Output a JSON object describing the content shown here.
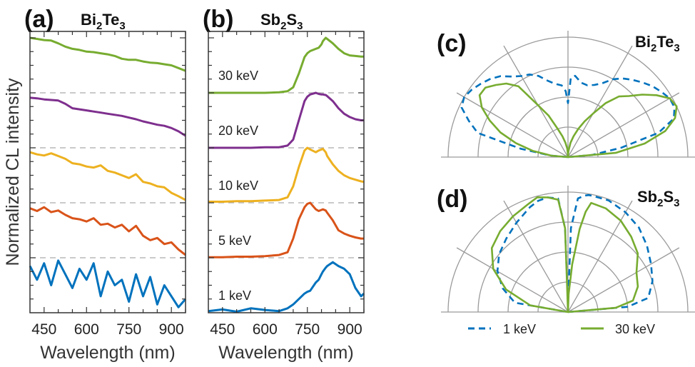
{
  "colors": {
    "30 keV": "#77ac30",
    "20 keV": "#7e2f8e",
    "10 keV": "#edb120",
    "5 keV": "#d95319",
    "1 keV": "#0072bd",
    "grid": "#9a9a9a",
    "frame": "#333333"
  },
  "chart_data": [
    {
      "panel": "(a)",
      "type": "line",
      "title_parts": [
        "Bi",
        "2",
        "Te",
        "3"
      ],
      "xlabel": "Wavelength (nm)",
      "ylabel": "Normalized CL intensity",
      "xlim": [
        400,
        950
      ],
      "xticks": [
        450,
        600,
        750,
        900
      ],
      "offset_step": 1,
      "x": [
        400,
        425,
        450,
        475,
        500,
        525,
        550,
        575,
        600,
        625,
        650,
        675,
        700,
        725,
        750,
        775,
        800,
        825,
        850,
        875,
        900,
        925,
        950
      ],
      "series": [
        {
          "key": "1 keV",
          "offset": 0,
          "values": [
            0.85,
            0.6,
            0.9,
            0.5,
            0.95,
            0.7,
            0.45,
            0.8,
            0.6,
            0.9,
            0.3,
            0.75,
            0.5,
            0.6,
            0.2,
            0.7,
            0.3,
            0.65,
            0.15,
            0.5,
            0.3,
            0.1,
            0.25
          ]
        },
        {
          "key": "5 keV",
          "offset": 1,
          "values": [
            0.9,
            0.85,
            0.92,
            0.83,
            0.86,
            0.78,
            0.72,
            0.7,
            0.66,
            0.72,
            0.6,
            0.62,
            0.55,
            0.6,
            0.48,
            0.58,
            0.4,
            0.32,
            0.36,
            0.25,
            0.28,
            0.15,
            0.05
          ]
        },
        {
          "key": "10 keV",
          "offset": 2,
          "values": [
            0.92,
            0.88,
            0.86,
            0.9,
            0.85,
            0.8,
            0.72,
            0.7,
            0.66,
            0.64,
            0.68,
            0.58,
            0.55,
            0.5,
            0.45,
            0.52,
            0.38,
            0.35,
            0.3,
            0.28,
            0.18,
            0.12,
            0.05
          ]
        },
        {
          "key": "20 keV",
          "offset": 3,
          "values": [
            0.91,
            0.9,
            0.88,
            0.87,
            0.86,
            0.8,
            0.72,
            0.7,
            0.68,
            0.66,
            0.64,
            0.62,
            0.6,
            0.58,
            0.55,
            0.52,
            0.48,
            0.45,
            0.42,
            0.4,
            0.36,
            0.3,
            0.22
          ]
        },
        {
          "key": "30 keV",
          "offset": 4,
          "values": [
            1.0,
            0.98,
            0.96,
            0.95,
            0.9,
            0.84,
            0.8,
            0.78,
            0.75,
            0.74,
            0.72,
            0.7,
            0.67,
            0.62,
            0.6,
            0.6,
            0.57,
            0.55,
            0.54,
            0.52,
            0.5,
            0.45,
            0.4
          ]
        }
      ]
    },
    {
      "panel": "(b)",
      "type": "line",
      "title_parts": [
        "Sb",
        "2",
        "S",
        "3"
      ],
      "xlabel": "Wavelength (nm)",
      "xlim": [
        400,
        950
      ],
      "xticks": [
        450,
        600,
        750,
        900
      ],
      "offset_step": 1,
      "x": [
        400,
        450,
        500,
        550,
        600,
        650,
        680,
        700,
        720,
        740,
        750,
        760,
        780,
        790,
        800,
        805,
        815,
        820,
        840,
        860,
        880,
        900,
        920,
        940,
        950
      ],
      "series": [
        {
          "key": "1 keV",
          "offset": 0,
          "label": "1 keV",
          "values": [
            0.03,
            0.06,
            0.02,
            0.08,
            0.05,
            0.03,
            0.08,
            0.15,
            0.25,
            0.35,
            0.38,
            0.4,
            0.55,
            0.6,
            0.7,
            0.75,
            0.82,
            0.85,
            0.92,
            0.85,
            0.8,
            0.7,
            0.45,
            0.3,
            0.35
          ]
        },
        {
          "key": "5 keV",
          "offset": 1,
          "label": "5 keV",
          "values": [
            0.01,
            0.01,
            0.02,
            0.02,
            0.03,
            0.05,
            0.1,
            0.35,
            0.7,
            0.92,
            0.98,
            1.0,
            0.88,
            0.85,
            0.87,
            0.88,
            0.86,
            0.82,
            0.68,
            0.5,
            0.44,
            0.4,
            0.37,
            0.35,
            0.35
          ]
        },
        {
          "key": "10 keV",
          "offset": 2,
          "label": "10 keV",
          "values": [
            0.02,
            0.02,
            0.03,
            0.03,
            0.04,
            0.05,
            0.1,
            0.3,
            0.65,
            0.95,
            1.0,
            0.97,
            0.92,
            0.95,
            0.97,
            0.98,
            0.92,
            0.85,
            0.7,
            0.58,
            0.5,
            0.45,
            0.42,
            0.39,
            0.38
          ]
        },
        {
          "key": "20 keV",
          "offset": 3,
          "label": "20 keV",
          "values": [
            0.0,
            0.0,
            0.0,
            0.0,
            0.01,
            0.01,
            0.04,
            0.15,
            0.5,
            0.85,
            0.93,
            0.97,
            1.0,
            0.98,
            0.97,
            0.97,
            0.96,
            0.94,
            0.85,
            0.72,
            0.62,
            0.56,
            0.52,
            0.5,
            0.5
          ]
        },
        {
          "key": "30 keV",
          "offset": 4,
          "label": "30 keV",
          "values": [
            0.0,
            0.0,
            0.0,
            0.0,
            0.0,
            0.01,
            0.03,
            0.1,
            0.35,
            0.65,
            0.72,
            0.76,
            0.8,
            0.82,
            0.88,
            0.94,
            1.0,
            0.98,
            0.9,
            0.8,
            0.72,
            0.68,
            0.67,
            0.66,
            0.66
          ]
        }
      ]
    },
    {
      "panel": "(c)",
      "type": "polar",
      "title_parts": [
        "Bi",
        "2",
        "Te",
        "3"
      ],
      "angle_deg": [
        0,
        5,
        10,
        15,
        20,
        25,
        30,
        35,
        40,
        45,
        50,
        55,
        60,
        65,
        70,
        75,
        80,
        85,
        88,
        90,
        92,
        95,
        100,
        105,
        110,
        115,
        120,
        125,
        130,
        135,
        140,
        145,
        150,
        155,
        160,
        165,
        170,
        175,
        180
      ],
      "series": [
        {
          "key": "1 keV",
          "style": "dashed",
          "r": [
            0,
            0.2,
            0.45,
            0.78,
            0.94,
            0.98,
            0.98,
            0.95,
            0.92,
            0.88,
            0.84,
            0.8,
            0.75,
            0.68,
            0.64,
            0.62,
            0.63,
            0.68,
            0.66,
            0.45,
            0.55,
            0.6,
            0.62,
            0.66,
            0.72,
            0.76,
            0.78,
            0.82,
            0.88,
            0.92,
            0.95,
            0.98,
            1.0,
            0.98,
            0.88,
            0.78,
            0.4,
            0.15,
            0
          ]
        },
        {
          "key": "30 keV",
          "style": "solid",
          "r": [
            0,
            0.4,
            0.65,
            0.84,
            0.95,
            1.0,
            0.98,
            0.9,
            0.81,
            0.72,
            0.66,
            0.55,
            0.42,
            0.33,
            0.25,
            0.18,
            0.12,
            0.05,
            0.02,
            0,
            0.03,
            0.07,
            0.12,
            0.18,
            0.25,
            0.38,
            0.5,
            0.72,
            0.8,
            0.85,
            0.9,
            0.9,
            0.83,
            0.72,
            0.6,
            0.45,
            0.3,
            0.14,
            0
          ]
        }
      ]
    },
    {
      "panel": "(d)",
      "type": "polar",
      "title_parts": [
        "Sb",
        "2",
        "S",
        "3"
      ],
      "angle_deg": [
        0,
        5,
        10,
        20,
        30,
        40,
        50,
        60,
        70,
        78,
        80,
        82,
        85,
        88,
        90,
        92,
        95,
        100,
        105,
        110,
        120,
        130,
        140,
        150,
        160,
        170,
        180
      ],
      "series": [
        {
          "key": "1 keV",
          "style": "dashed",
          "r": [
            0,
            0.5,
            0.68,
            0.75,
            0.8,
            0.86,
            0.92,
            0.96,
            0.99,
            0.99,
            0.99,
            0.98,
            0.95,
            0.7,
            0.05,
            0.7,
            0.95,
            0.97,
            0.96,
            0.93,
            0.86,
            0.8,
            0.75,
            0.68,
            0.58,
            0.45,
            0
          ]
        },
        {
          "key": "30 keV",
          "style": "solid",
          "r": [
            0,
            0.4,
            0.55,
            0.62,
            0.66,
            0.76,
            0.82,
            0.88,
            0.92,
            0.93,
            0.85,
            0.7,
            0.4,
            0.15,
            0,
            0.7,
            0.94,
            0.97,
            0.99,
            0.96,
            0.92,
            0.88,
            0.83,
            0.72,
            0.55,
            0.32,
            0
          ]
        }
      ]
    }
  ],
  "legend": [
    {
      "key": "1 keV",
      "label": "1 keV",
      "style": "dashed"
    },
    {
      "key": "30 keV",
      "label": "30 keV",
      "style": "solid"
    }
  ]
}
